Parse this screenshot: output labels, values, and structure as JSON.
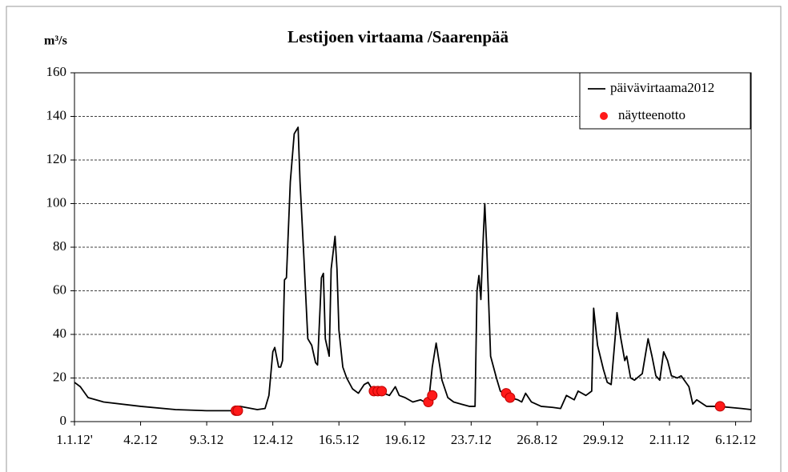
{
  "chart_data": {
    "type": "line",
    "title": "Lestijoen virtaama /Saarenpää",
    "y_label": "m³/s",
    "xlim": [
      0,
      348
    ],
    "xticks": [
      {
        "value": 0,
        "label": "1.1.12'"
      },
      {
        "value": 34,
        "label": "4.2.12"
      },
      {
        "value": 68,
        "label": "9.3.12"
      },
      {
        "value": 102,
        "label": "12.4.12"
      },
      {
        "value": 136,
        "label": "16.5.12"
      },
      {
        "value": 170,
        "label": "19.6.12"
      },
      {
        "value": 204,
        "label": "23.7.12"
      },
      {
        "value": 238,
        "label": "26.8.12"
      },
      {
        "value": 272,
        "label": "29.9.12"
      },
      {
        "value": 306,
        "label": "2.11.12"
      },
      {
        "value": 340,
        "label": "6.12.12"
      }
    ],
    "ylim": [
      0,
      160
    ],
    "yticks": [
      0,
      20,
      40,
      60,
      80,
      100,
      120,
      140,
      160
    ],
    "grid": true,
    "legend": "upper right",
    "series": [
      {
        "name": "päivävirtaama2012",
        "type": "line",
        "color": "#000000",
        "x": [
          0,
          3,
          7,
          15,
          34,
          52,
          68,
          81,
          85,
          94,
          98,
          100,
          102,
          103,
          105,
          106,
          107,
          108,
          109,
          111,
          113,
          115,
          116,
          118,
          120,
          122,
          124,
          125,
          127,
          128,
          129,
          131,
          132,
          134,
          135,
          136,
          138,
          140,
          143,
          146,
          149,
          151,
          153,
          156,
          159,
          162,
          165,
          167,
          170,
          174,
          178,
          182,
          184,
          186,
          189,
          192,
          195,
          199,
          203,
          206,
          207,
          208,
          209,
          210,
          211,
          212,
          214,
          217,
          219,
          224,
          228,
          230,
          232,
          235,
          240,
          246,
          250,
          253,
          257,
          259,
          263,
          266,
          267,
          269,
          272,
          274,
          276,
          278,
          279,
          281,
          283,
          284,
          286,
          288,
          292,
          295,
          297,
          299,
          301,
          303,
          305,
          307,
          310,
          312,
          316,
          318,
          320,
          325,
          331,
          337,
          343,
          348
        ],
        "values": [
          18,
          16,
          11,
          9,
          7,
          5.5,
          5,
          5,
          7,
          5.5,
          6,
          12,
          32,
          34,
          25,
          25,
          28,
          65,
          66,
          110,
          132,
          135,
          110,
          75,
          38,
          35,
          27,
          26,
          66,
          68,
          38,
          30,
          70,
          85,
          70,
          42,
          25,
          20,
          15,
          13,
          17,
          18,
          15,
          14,
          13,
          12,
          16,
          12,
          11,
          9,
          10,
          8,
          25,
          36,
          19,
          11,
          9,
          8,
          7,
          7,
          60,
          67,
          56,
          80,
          100,
          80,
          30,
          20,
          14,
          11,
          10,
          9,
          13,
          9,
          7,
          6.5,
          6,
          12,
          10,
          14,
          12,
          14,
          52,
          35,
          24,
          18,
          17,
          38,
          50,
          38,
          28,
          30,
          20,
          19,
          22,
          38,
          30,
          21,
          19,
          32,
          28,
          21,
          20,
          21,
          16,
          8,
          10,
          7,
          7,
          6.5,
          6,
          5.5
        ]
      },
      {
        "name": "näytteenotto",
        "type": "scatter",
        "color": "#ff1a1a",
        "x": [
          83,
          84,
          154,
          156,
          158,
          182,
          184,
          222,
          224,
          332
        ],
        "values": [
          5,
          5,
          14,
          14,
          14,
          9,
          12,
          13,
          11,
          7
        ]
      }
    ]
  }
}
